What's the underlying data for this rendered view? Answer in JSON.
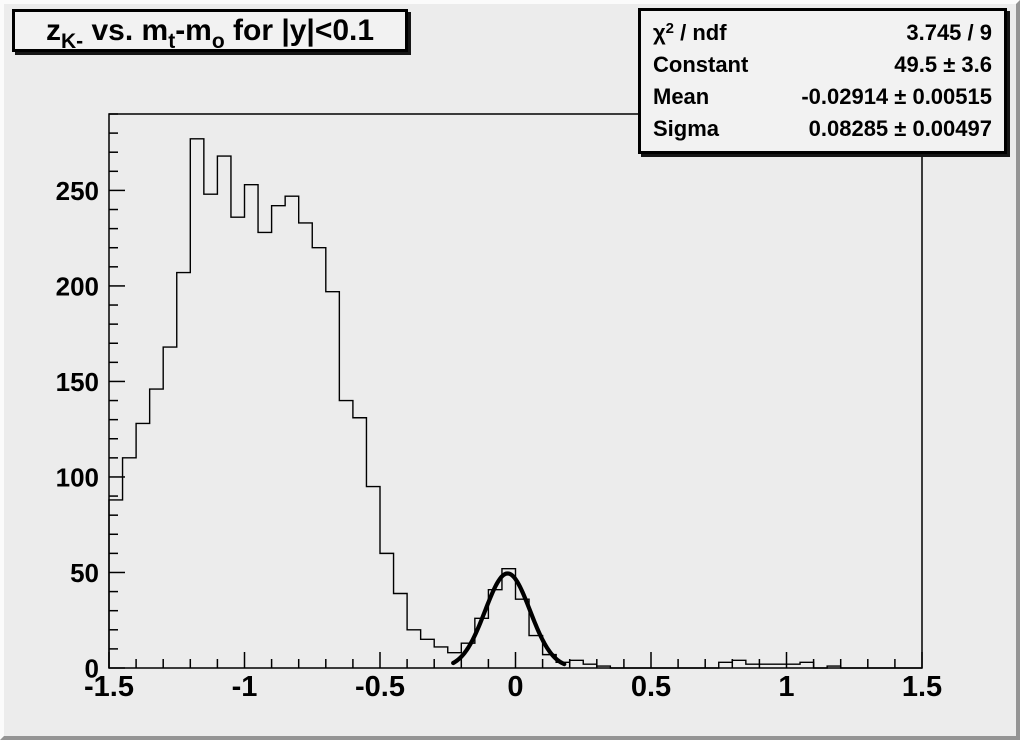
{
  "canvas": {
    "background": "#ececec",
    "bevel_light": "#fbfbfb",
    "bevel_dark": "#949494",
    "line_color": "#000000"
  },
  "title": {
    "text": "z_K- vs. m_t-m_o for |y|<0.1",
    "parts": {
      "z": "z",
      "z_sub": "K-",
      "vs": " vs. m",
      "t_sub": "t",
      "minus_m": "-m",
      "o_sub": "o",
      "rest": " for |y|<0.1"
    }
  },
  "stats": {
    "chi": {
      "symbol": "χ",
      "sup": "2",
      "rest": " / ndf",
      "value": "3.745 / 9"
    },
    "rows": [
      {
        "label": "Constant",
        "value": "49.5 ± 3.6"
      },
      {
        "label": "Mean",
        "value": "-0.02914 ± 0.00515"
      },
      {
        "label": "Sigma",
        "value": "0.08285 ± 0.00497"
      }
    ]
  },
  "chart_data": {
    "type": "histogram",
    "title": "z_K- vs. m_t-m_o for |y|<0.1",
    "x_min": -1.5,
    "x_max": 1.5,
    "n_bins": 60,
    "bin_width": 0.05,
    "bin_values": [
      88,
      110,
      128,
      146,
      168,
      207,
      277,
      248,
      268,
      236,
      253,
      228,
      242,
      247,
      233,
      220,
      197,
      140,
      131,
      95,
      60,
      39,
      20,
      15,
      11,
      8,
      13,
      26,
      41,
      52,
      36,
      17,
      7,
      3,
      4,
      2,
      1,
      0,
      0,
      0,
      0,
      0,
      0,
      0,
      0,
      3,
      4,
      2,
      2,
      2,
      2,
      3,
      0,
      1,
      0,
      0,
      0,
      0,
      0,
      0
    ],
    "ylim": [
      0,
      290
    ],
    "xlabel": "",
    "ylabel": "",
    "grid": false,
    "x_major_ticks": [
      -1.5,
      -1,
      -0.5,
      0,
      0.5,
      1,
      1.5
    ],
    "x_tick_labels": [
      "-1.5",
      "-1",
      "-0.5",
      "0",
      "0.5",
      "1",
      "1.5"
    ],
    "x_minor_step": 0.1,
    "y_major_ticks": [
      0,
      50,
      100,
      150,
      200,
      250
    ],
    "y_tick_labels": [
      "0",
      "50",
      "100",
      "150",
      "200",
      "250"
    ],
    "y_minor_step": 10,
    "fit": {
      "type": "gaussian",
      "chi2": 3.745,
      "ndf": 9,
      "constant": 49.5,
      "mean": -0.02914,
      "sigma": 0.08285,
      "draw_range": [
        -0.23,
        0.18
      ]
    }
  }
}
